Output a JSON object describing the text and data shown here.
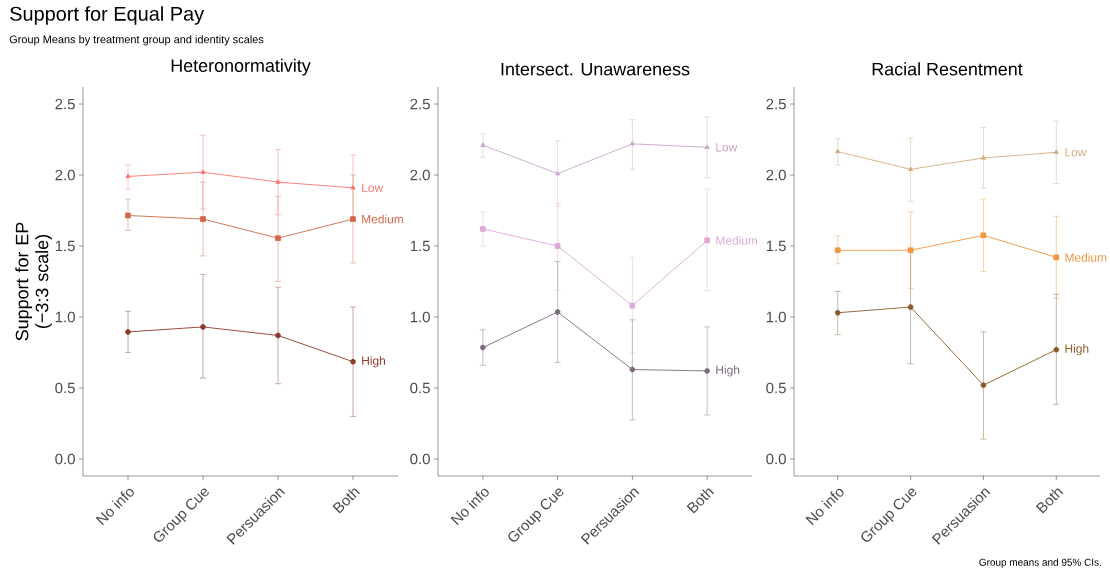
{
  "chart_data": [
    {
      "type": "line",
      "title": "Heteronormativity",
      "ylabel": "Support for EP (−3:3 scale)",
      "annotations": [
        "Support for Equal Pay",
        "Group Means by treatment group and identity scales"
      ],
      "categories": [
        "No info",
        "Group Cue",
        "Persuasion",
        "Both"
      ],
      "ylim": [
        -0.12,
        2.62
      ],
      "yticks": [
        {
          "value": 0,
          "label": "0.0"
        },
        0.5,
        {
          "value": 1,
          "label": "1.0"
        },
        1.5,
        {
          "value": 2,
          "label": "2.0"
        },
        2.5
      ],
      "grid": false,
      "legend": false,
      "line_style": "solid",
      "series": [
        {
          "name": "Low",
          "color": "#f8766d",
          "marker": "triangle",
          "values": [
            1.99,
            2.02,
            1.95,
            1.91
          ],
          "errors": [
            [
              1.9,
              2.07
            ],
            [
              1.76,
              2.28
            ],
            [
              1.72,
              2.18
            ],
            [
              1.68,
              2.14
            ]
          ]
        },
        {
          "name": "Medium",
          "color": "#d4694a",
          "marker": "square",
          "values": [
            1.715,
            1.69,
            1.555,
            1.69
          ],
          "errors": [
            [
              1.61,
              1.83
            ],
            [
              1.43,
              1.95
            ],
            [
              1.25,
              1.85
            ],
            [
              1.38,
              2.0
            ]
          ]
        },
        {
          "name": "High",
          "color": "#8b3a2a",
          "marker": "circle",
          "values": [
            0.895,
            0.93,
            0.87,
            0.685
          ],
          "errors": [
            [
              0.75,
              1.04
            ],
            [
              0.57,
              1.3
            ],
            [
              0.53,
              1.21
            ],
            [
              0.3,
              1.07
            ]
          ]
        }
      ]
    },
    {
      "type": "line",
      "title": "Intersect. Unawareness",
      "categories": [
        "No info",
        "Group Cue",
        "Persuasion",
        "Both"
      ],
      "ylim": [
        -0.12,
        2.62
      ],
      "yticks": [
        {
          "value": 0,
          "label": "0.0"
        },
        0.5,
        {
          "value": 1,
          "label": "1.0"
        },
        1.5,
        {
          "value": 2,
          "label": "2.0"
        },
        2.5
      ],
      "grid": false,
      "legend": false,
      "line_style": "solid",
      "series": [
        {
          "name": "Low",
          "color": "#c8a6c8",
          "marker": "triangle",
          "values": [
            2.21,
            2.01,
            2.22,
            2.195
          ],
          "errors": [
            [
              2.125,
              2.29
            ],
            [
              1.78,
              2.24
            ],
            [
              2.04,
              2.39
            ],
            [
              1.98,
              2.41
            ]
          ]
        },
        {
          "name": "Medium",
          "color": "#dcaad8",
          "marker": "square",
          "values": [
            1.62,
            1.5,
            1.08,
            1.54
          ],
          "errors": [
            [
              1.5,
              1.74
            ],
            [
              1.19,
              1.8
            ],
            [
              0.745,
              1.42
            ],
            [
              1.185,
              1.9
            ]
          ]
        },
        {
          "name": "High",
          "color": "#7e6a7e",
          "marker": "circle",
          "values": [
            0.785,
            1.035,
            0.63,
            0.62
          ],
          "errors": [
            [
              0.66,
              0.91
            ],
            [
              0.68,
              1.39
            ],
            [
              0.275,
              0.98
            ],
            [
              0.31,
              0.93
            ]
          ]
        }
      ]
    },
    {
      "type": "line",
      "title": "Racial Resentment",
      "annotations": [
        "Group means and 95% CIs."
      ],
      "categories": [
        "No info",
        "Group Cue",
        "Persuasion",
        "Both"
      ],
      "ylim": [
        -0.12,
        2.62
      ],
      "yticks": [
        {
          "value": 0,
          "label": "0.0"
        },
        0.5,
        {
          "value": 1,
          "label": "1.0"
        },
        1.5,
        {
          "value": 2,
          "label": "2.0"
        },
        2.5
      ],
      "grid": false,
      "legend": false,
      "line_style": "solid",
      "series": [
        {
          "name": "Low",
          "color": "#d2ac7e",
          "marker": "triangle",
          "values": [
            2.165,
            2.04,
            2.12,
            2.16
          ],
          "errors": [
            [
              2.07,
              2.255
            ],
            [
              1.815,
              2.26
            ],
            [
              1.91,
              2.335
            ],
            [
              1.94,
              2.38
            ]
          ]
        },
        {
          "name": "Medium",
          "color": "#f0953f",
          "marker": "square",
          "values": [
            1.47,
            1.47,
            1.575,
            1.42
          ],
          "errors": [
            [
              1.375,
              1.57
            ],
            [
              1.2,
              1.74
            ],
            [
              1.32,
              1.83
            ],
            [
              1.13,
              1.71
            ]
          ]
        },
        {
          "name": "High",
          "color": "#8b5a2b",
          "marker": "circle",
          "values": [
            1.03,
            1.07,
            0.52,
            0.77
          ],
          "errors": [
            [
              0.875,
              1.18
            ],
            [
              0.67,
              1.47
            ],
            [
              0.14,
              0.895
            ],
            [
              0.385,
              1.16
            ]
          ]
        }
      ]
    }
  ]
}
